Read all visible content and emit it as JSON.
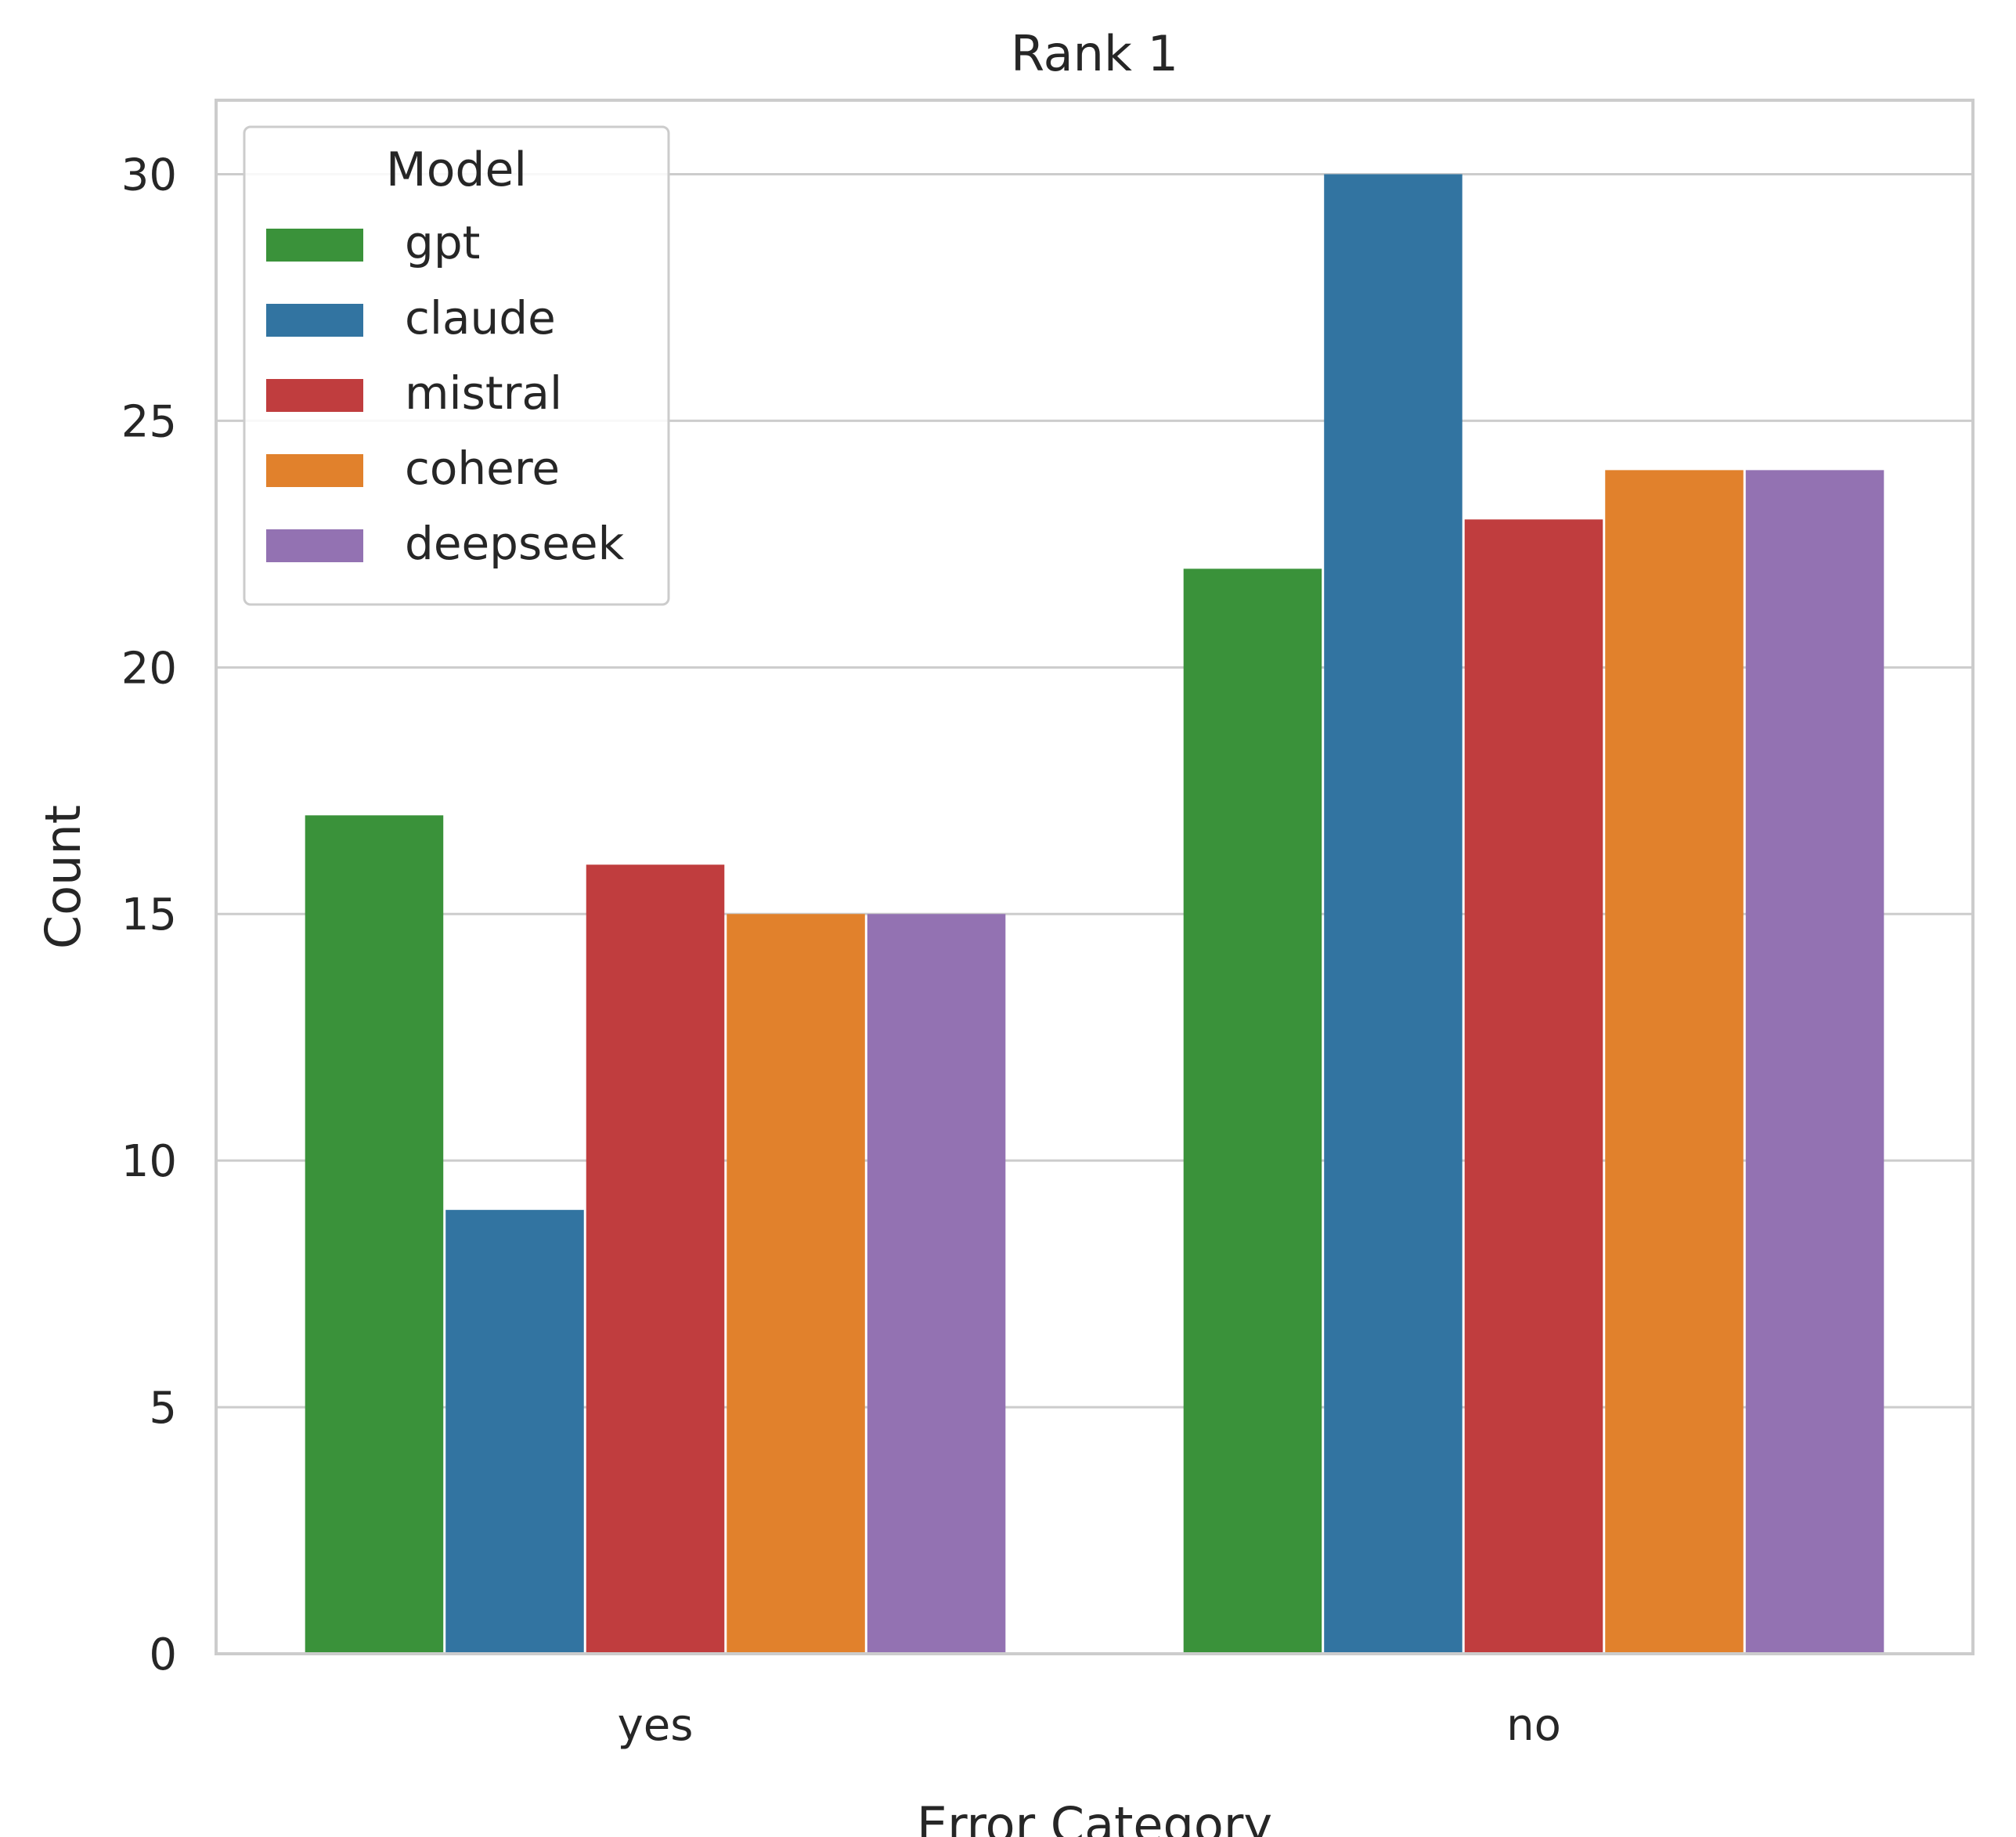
{
  "chart_data": {
    "type": "bar",
    "title": "Rank 1",
    "xlabel": "Error Category",
    "ylabel": "Count",
    "categories": [
      "yes",
      "no"
    ],
    "ylim": [
      0,
      31.5
    ],
    "yticks": [
      0,
      5,
      10,
      15,
      20,
      25,
      30
    ],
    "grid": true,
    "legend": {
      "title": "Model",
      "position": "top-left"
    },
    "series": [
      {
        "name": "gpt",
        "color": "#3a923a",
        "values": [
          17,
          22
        ]
      },
      {
        "name": "claude",
        "color": "#3274a1",
        "values": [
          9,
          30
        ]
      },
      {
        "name": "mistral",
        "color": "#c03d3e",
        "values": [
          16,
          23
        ]
      },
      {
        "name": "cohere",
        "color": "#e1812c",
        "values": [
          15,
          24
        ]
      },
      {
        "name": "deepseek",
        "color": "#9372b2",
        "values": [
          15,
          24
        ]
      }
    ]
  }
}
